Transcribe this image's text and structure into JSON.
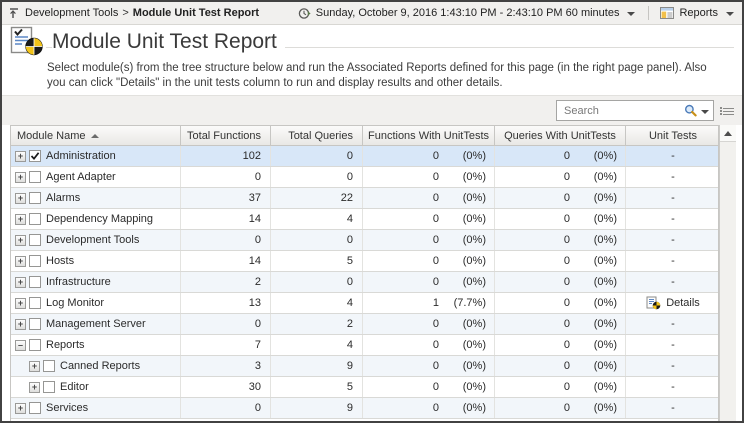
{
  "chrome": {
    "breadcrumb": {
      "parent": "Development Tools",
      "separator": ">",
      "current": "Module Unit Test Report"
    },
    "time_range": "Sunday, October 9, 2016 1:43:10 PM - 2:43:10 PM 60 minutes",
    "reports_label": "Reports"
  },
  "page": {
    "title": "Module Unit Test Report",
    "description": "Select module(s) from the tree structure below and run the Associated Reports defined for this page (in the right page panel). Also you can click \"Details\" in the unit tests column to run and display results and other details."
  },
  "search": {
    "placeholder": "Search"
  },
  "colors": {
    "selected_row": "#d8e7f8",
    "row_alt": "#f2f6fa",
    "toolbar_bg": "#f1f0ee",
    "pie_yellow": "#f2c318",
    "pie_black": "#1a1a1a"
  },
  "table": {
    "columns": [
      {
        "label": "Module Name",
        "sorted": "asc"
      },
      {
        "label": "Total Functions"
      },
      {
        "label": "Total Queries"
      },
      {
        "label": "Functions With UnitTests"
      },
      {
        "label": "Queries With UnitTests"
      },
      {
        "label": "Unit Tests"
      }
    ],
    "rows": [
      {
        "name": "Administration",
        "level": 0,
        "expanded": false,
        "checked": true,
        "selected": true,
        "total_functions": "102",
        "total_queries": "0",
        "functions_ut": "0",
        "functions_ut_pct": "(0%)",
        "queries_ut": "0",
        "queries_ut_pct": "(0%)",
        "unit_tests": "-",
        "details": false
      },
      {
        "name": "Agent Adapter",
        "level": 0,
        "expanded": false,
        "checked": false,
        "selected": false,
        "total_functions": "0",
        "total_queries": "0",
        "functions_ut": "0",
        "functions_ut_pct": "(0%)",
        "queries_ut": "0",
        "queries_ut_pct": "(0%)",
        "unit_tests": "-",
        "details": false
      },
      {
        "name": "Alarms",
        "level": 0,
        "expanded": false,
        "checked": false,
        "selected": false,
        "total_functions": "37",
        "total_queries": "22",
        "functions_ut": "0",
        "functions_ut_pct": "(0%)",
        "queries_ut": "0",
        "queries_ut_pct": "(0%)",
        "unit_tests": "-",
        "details": false
      },
      {
        "name": "Dependency Mapping",
        "level": 0,
        "expanded": false,
        "checked": false,
        "selected": false,
        "total_functions": "14",
        "total_queries": "4",
        "functions_ut": "0",
        "functions_ut_pct": "(0%)",
        "queries_ut": "0",
        "queries_ut_pct": "(0%)",
        "unit_tests": "-",
        "details": false
      },
      {
        "name": "Development Tools",
        "level": 0,
        "expanded": false,
        "checked": false,
        "selected": false,
        "total_functions": "0",
        "total_queries": "0",
        "functions_ut": "0",
        "functions_ut_pct": "(0%)",
        "queries_ut": "0",
        "queries_ut_pct": "(0%)",
        "unit_tests": "-",
        "details": false
      },
      {
        "name": "Hosts",
        "level": 0,
        "expanded": false,
        "checked": false,
        "selected": false,
        "total_functions": "14",
        "total_queries": "5",
        "functions_ut": "0",
        "functions_ut_pct": "(0%)",
        "queries_ut": "0",
        "queries_ut_pct": "(0%)",
        "unit_tests": "-",
        "details": false
      },
      {
        "name": "Infrastructure",
        "level": 0,
        "expanded": false,
        "checked": false,
        "selected": false,
        "total_functions": "2",
        "total_queries": "0",
        "functions_ut": "0",
        "functions_ut_pct": "(0%)",
        "queries_ut": "0",
        "queries_ut_pct": "(0%)",
        "unit_tests": "-",
        "details": false
      },
      {
        "name": "Log Monitor",
        "level": 0,
        "expanded": false,
        "checked": false,
        "selected": false,
        "total_functions": "13",
        "total_queries": "4",
        "functions_ut": "1",
        "functions_ut_pct": "(7.7%)",
        "queries_ut": "0",
        "queries_ut_pct": "(0%)",
        "unit_tests": "Details",
        "details": true
      },
      {
        "name": "Management Server",
        "level": 0,
        "expanded": false,
        "checked": false,
        "selected": false,
        "total_functions": "0",
        "total_queries": "2",
        "functions_ut": "0",
        "functions_ut_pct": "(0%)",
        "queries_ut": "0",
        "queries_ut_pct": "(0%)",
        "unit_tests": "-",
        "details": false
      },
      {
        "name": "Reports",
        "level": 0,
        "expanded": true,
        "checked": false,
        "selected": false,
        "total_functions": "7",
        "total_queries": "4",
        "functions_ut": "0",
        "functions_ut_pct": "(0%)",
        "queries_ut": "0",
        "queries_ut_pct": "(0%)",
        "unit_tests": "-",
        "details": false
      },
      {
        "name": "Canned Reports",
        "level": 1,
        "expanded": false,
        "checked": false,
        "selected": false,
        "total_functions": "3",
        "total_queries": "9",
        "functions_ut": "0",
        "functions_ut_pct": "(0%)",
        "queries_ut": "0",
        "queries_ut_pct": "(0%)",
        "unit_tests": "-",
        "details": false
      },
      {
        "name": "Editor",
        "level": 1,
        "expanded": false,
        "checked": false,
        "selected": false,
        "total_functions": "30",
        "total_queries": "5",
        "functions_ut": "0",
        "functions_ut_pct": "(0%)",
        "queries_ut": "0",
        "queries_ut_pct": "(0%)",
        "unit_tests": "-",
        "details": false
      },
      {
        "name": "Services",
        "level": 0,
        "expanded": false,
        "checked": false,
        "selected": false,
        "total_functions": "0",
        "total_queries": "9",
        "functions_ut": "0",
        "functions_ut_pct": "(0%)",
        "queries_ut": "0",
        "queries_ut_pct": "(0%)",
        "unit_tests": "-",
        "details": false
      }
    ]
  }
}
